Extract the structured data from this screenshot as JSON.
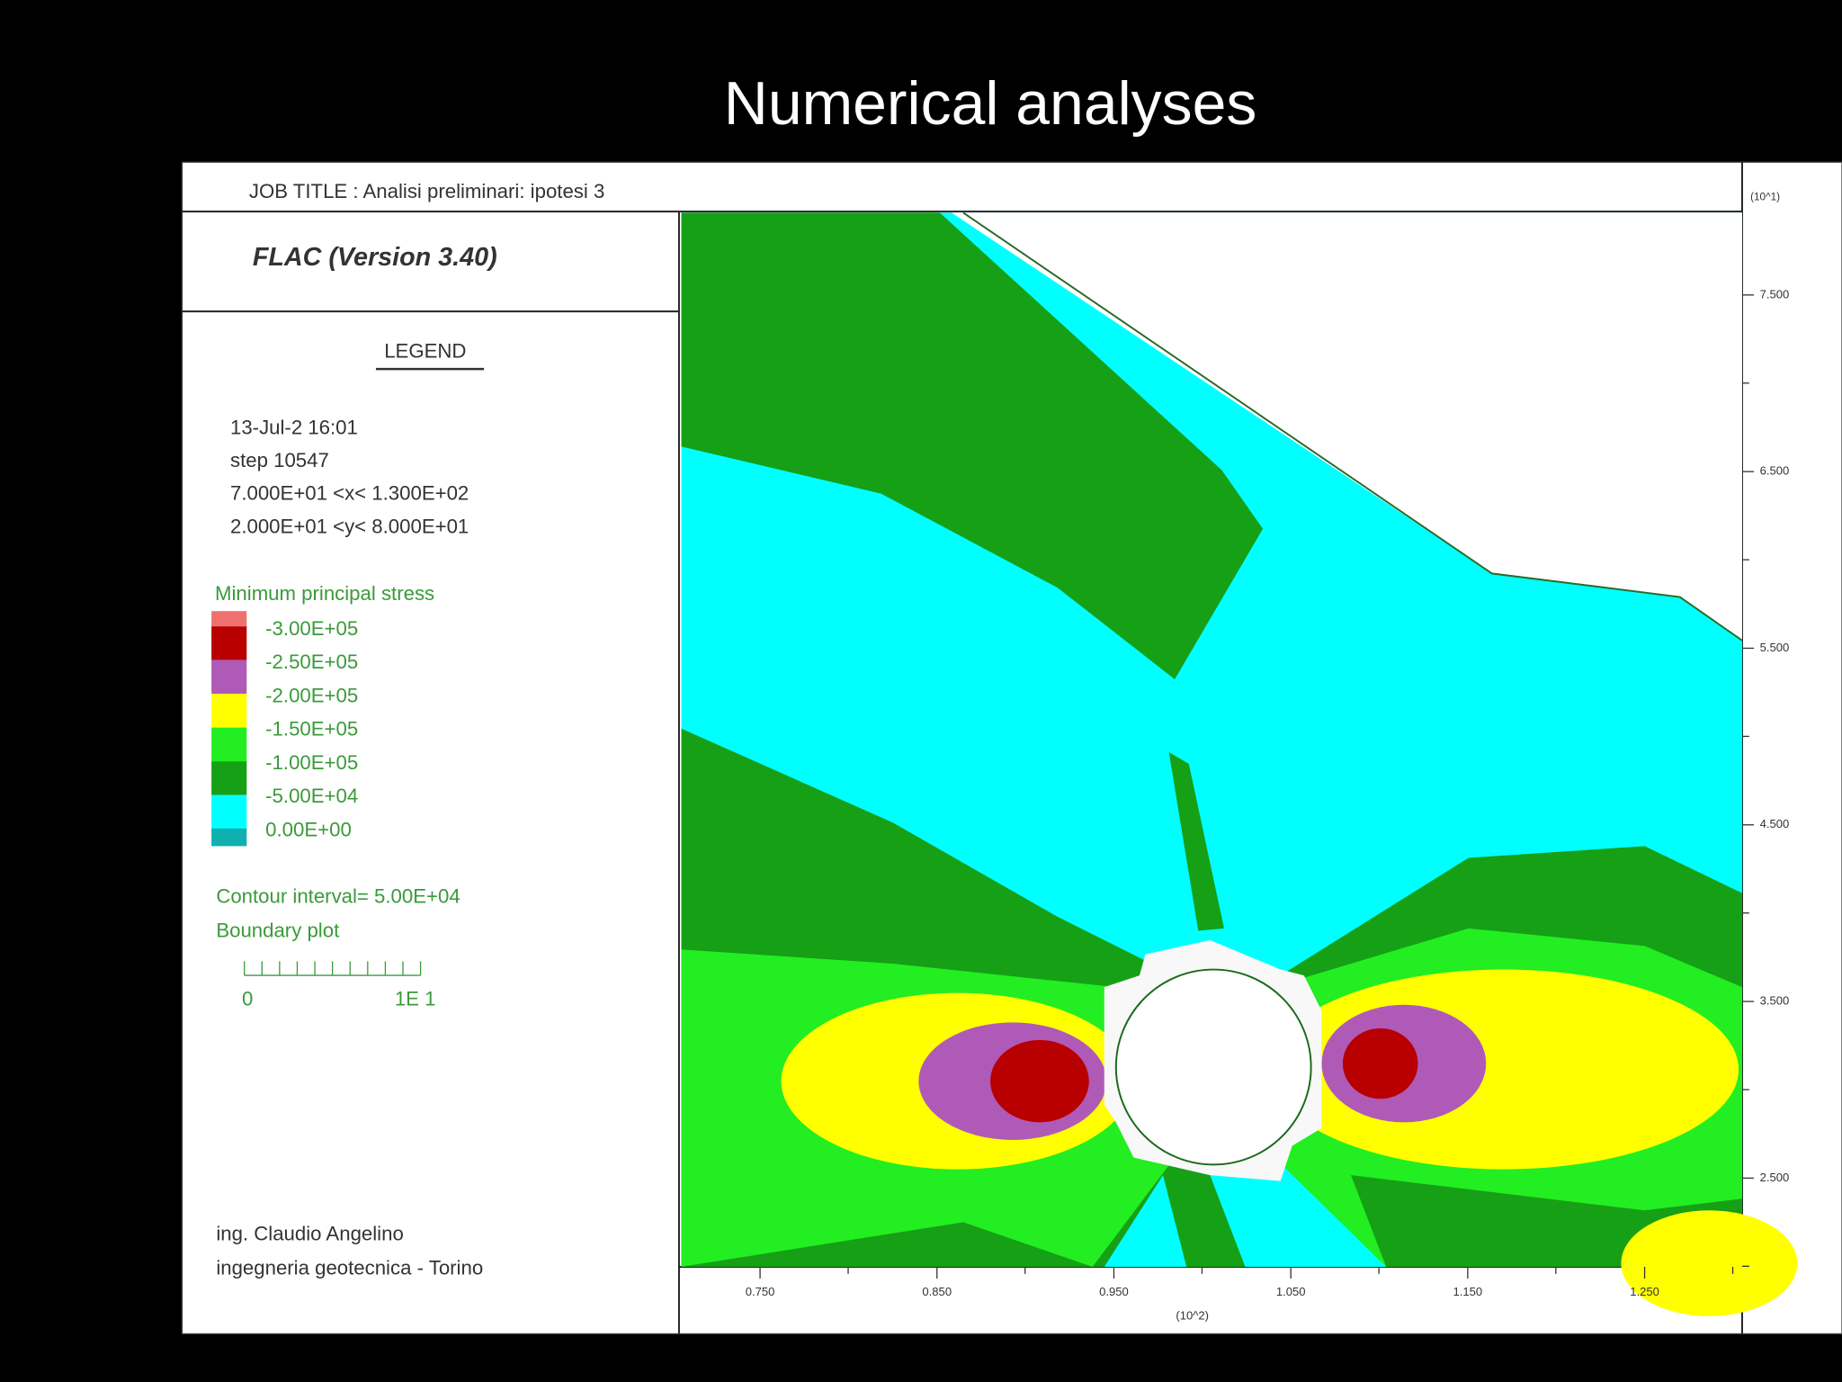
{
  "slide_title": "Numerical analyses",
  "header": {
    "job_title": "JOB TITLE :  Analisi preliminari: ipotesi 3",
    "y_unit": "(10^1)"
  },
  "program": "FLAC (Version 3.40)",
  "legend": {
    "heading": "LEGEND",
    "info": [
      "13-Jul-2  16:01",
      "step    10547",
      "7.000E+01 <x<  1.300E+02",
      "2.000E+01 <y<  8.000E+01"
    ],
    "contour_title": "Minimum principal stress",
    "levels": [
      "-3.00E+05",
      "-2.50E+05",
      "-2.00E+05",
      "-1.50E+05",
      "-1.00E+05",
      "-5.00E+04",
      "0.00E+00"
    ],
    "contour_interval": "Contour interval=  5.00E+04",
    "boundary_plot": "Boundary plot",
    "scale_start": "0",
    "scale_end": "1E  1"
  },
  "credits": [
    "ing. Claudio Angelino",
    "ingegneria geotecnica - Torino"
  ],
  "x_axis": {
    "ticks": [
      "0.750",
      "0.850",
      "0.950",
      "1.050",
      "1.150",
      "1.250"
    ],
    "unit": "(10^2)"
  },
  "y_axis": {
    "ticks": [
      "7.500",
      "6.500",
      "5.500",
      "4.500",
      "3.500",
      "2.500"
    ]
  }
}
